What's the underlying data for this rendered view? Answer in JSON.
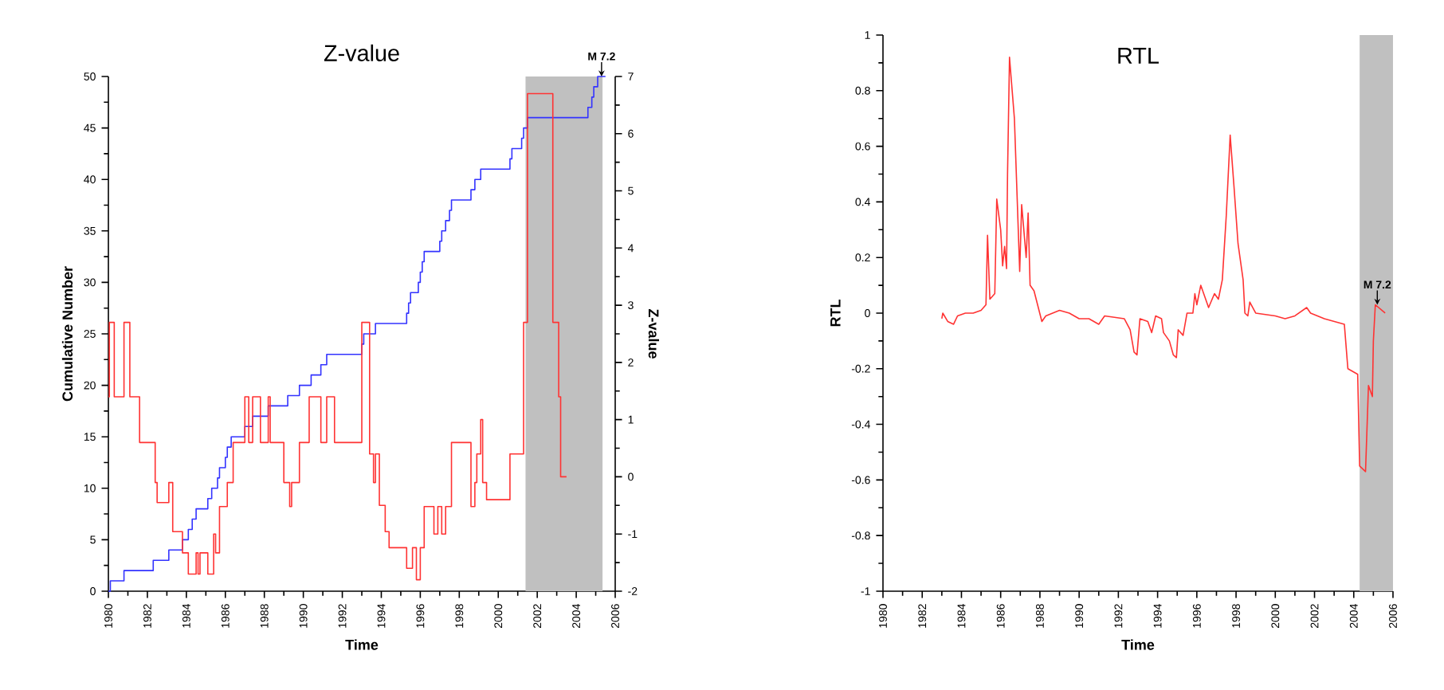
{
  "chart_data": [
    {
      "type": "step",
      "title": "Z-value",
      "xlabel": "Time",
      "ylabel": "Cumulative Number",
      "y2label": "Z-value",
      "xlim": [
        1980,
        2006
      ],
      "xticks": [
        1980,
        1982,
        1984,
        1986,
        1988,
        1990,
        1992,
        1994,
        1996,
        1998,
        2000,
        2002,
        2004,
        2006
      ],
      "ylim": [
        0,
        50
      ],
      "yticks": [
        0,
        5,
        10,
        15,
        20,
        25,
        30,
        35,
        40,
        45,
        50
      ],
      "y2lim": [
        -2,
        7
      ],
      "y2ticks": [
        -2,
        -1,
        0,
        1,
        2,
        3,
        4,
        5,
        6,
        7
      ],
      "bands": [
        {
          "axis": "x",
          "from": 2001.4,
          "to": 2005.35,
          "color": "#c0c0c0"
        }
      ],
      "annotations": [
        {
          "text": "M 7.2",
          "x": 2005.3,
          "y": 50
        }
      ],
      "series": [
        {
          "color": "#3333ff",
          "x": [
            1980.0,
            1980.1,
            1980.8,
            1982.3,
            1983.1,
            1983.8,
            1984.1,
            1984.3,
            1984.5,
            1985.1,
            1985.3,
            1985.6,
            1985.7,
            1986.0,
            1986.1,
            1986.3,
            1987.0,
            1987.4,
            1988.2,
            1989.2,
            1989.8,
            1990.4,
            1990.9,
            1991.2,
            1993.0,
            1993.1,
            1993.7,
            1995.3,
            1995.4,
            1995.5,
            1995.9,
            1996.0,
            1996.1,
            1996.2,
            1997.0,
            1997.1,
            1997.3,
            1997.5,
            1997.6,
            1998.6,
            1998.8,
            1999.1,
            2000.6,
            2000.7,
            2001.2,
            2001.3,
            2001.5,
            2004.6,
            2004.8,
            2004.9,
            2005.1,
            2005.5
          ],
          "values": [
            0,
            1,
            2,
            3,
            4,
            5,
            6,
            7,
            8,
            9,
            10,
            11,
            12,
            13,
            14,
            15,
            16,
            17,
            18,
            19,
            20,
            21,
            22,
            23,
            24,
            25,
            26,
            27,
            28,
            29,
            30,
            31,
            32,
            33,
            34,
            35,
            36,
            37,
            38,
            39,
            40,
            41,
            42,
            43,
            44,
            45,
            46,
            47,
            48,
            49,
            50,
            50
          ]
        },
        {
          "color": "#ff3333",
          "axis": "y2",
          "x": [
            1980.0,
            1980.05,
            1980.3,
            1980.8,
            1981.1,
            1981.6,
            1982.4,
            1982.5,
            1983.1,
            1983.3,
            1983.8,
            1984.1,
            1984.5,
            1984.6,
            1984.7,
            1985.1,
            1985.4,
            1985.5,
            1985.7,
            1986.1,
            1986.4,
            1987.0,
            1987.2,
            1987.4,
            1987.8,
            1988.2,
            1988.3,
            1989.0,
            1989.3,
            1989.4,
            1989.8,
            1990.3,
            1990.9,
            1991.2,
            1991.6,
            1993.0,
            1993.4,
            1993.6,
            1993.7,
            1993.9,
            1994.2,
            1994.4,
            1995.3,
            1995.6,
            1995.8,
            1996.0,
            1996.2,
            1996.7,
            1996.9,
            1997.1,
            1997.3,
            1997.6,
            1998.6,
            1998.8,
            1998.9,
            1999.1,
            1999.2,
            1999.4,
            2000.6,
            2001.3,
            2001.5,
            2002.8,
            2003.1,
            2003.2,
            2003.5
          ],
          "values": [
            1.4,
            2.7,
            1.4,
            2.7,
            1.4,
            0.6,
            -0.1,
            -0.45,
            -0.1,
            -0.96,
            -1.33,
            -1.7,
            -1.33,
            -1.7,
            -1.33,
            -1.7,
            -1.0,
            -1.33,
            -0.52,
            -0.1,
            0.6,
            1.4,
            0.6,
            1.4,
            0.6,
            1.4,
            0.6,
            -0.1,
            -0.52,
            -0.1,
            0.6,
            1.4,
            0.6,
            1.4,
            0.6,
            2.7,
            0.4,
            -0.1,
            0.4,
            -0.5,
            -0.96,
            -1.24,
            -1.6,
            -1.24,
            -1.8,
            -1.24,
            -0.52,
            -1.0,
            -0.52,
            -1.0,
            -0.52,
            0.6,
            -0.52,
            -0.1,
            0.4,
            1.0,
            -0.1,
            -0.4,
            0.4,
            2.7,
            6.7,
            2.7,
            1.4,
            0.0,
            0.0
          ]
        }
      ]
    },
    {
      "type": "line",
      "title": "RTL",
      "xlabel": "Time",
      "ylabel": "RTL",
      "xlim": [
        1980,
        2006
      ],
      "xticks": [
        1980,
        1982,
        1984,
        1986,
        1988,
        1990,
        1992,
        1994,
        1996,
        1998,
        2000,
        2002,
        2004,
        2006
      ],
      "ylim": [
        -1,
        1
      ],
      "yticks": [
        -1,
        -0.8,
        -0.6,
        -0.4,
        -0.2,
        0,
        0.2,
        0.4,
        0.6,
        0.8,
        1
      ],
      "bands": [
        {
          "axis": "x",
          "from": 2004.3,
          "to": 2006,
          "color": "#c0c0c0"
        }
      ],
      "annotations": [
        {
          "text": "M 7.2",
          "x": 2005.2,
          "y": 0.03
        }
      ],
      "series": [
        {
          "color": "#ff3333",
          "x": [
            1983.0,
            1983.05,
            1983.3,
            1983.6,
            1983.8,
            1984.2,
            1984.6,
            1985.0,
            1985.25,
            1985.33,
            1985.45,
            1985.7,
            1985.8,
            1986.0,
            1986.1,
            1986.2,
            1986.3,
            1986.35,
            1986.45,
            1986.7,
            1986.97,
            1987.07,
            1987.3,
            1987.4,
            1987.5,
            1987.7,
            1988.1,
            1988.3,
            1989.0,
            1989.5,
            1990.0,
            1990.5,
            1991.0,
            1991.3,
            1992.3,
            1992.6,
            1992.8,
            1992.95,
            1993.1,
            1993.5,
            1993.7,
            1993.9,
            1994.2,
            1994.3,
            1994.6,
            1994.8,
            1994.96,
            1995.05,
            1995.3,
            1995.5,
            1995.8,
            1995.9,
            1996.0,
            1996.2,
            1996.6,
            1996.9,
            1997.1,
            1997.3,
            1997.5,
            1997.7,
            1997.9,
            1998.1,
            1998.36,
            1998.45,
            1998.6,
            1998.7,
            1999.0,
            2000.0,
            2000.5,
            2001.0,
            2001.6,
            2001.8,
            2002.5,
            2003.52,
            2003.7,
            2004.2,
            2004.3,
            2004.6,
            2004.75,
            2004.95,
            2005.0,
            2005.1,
            2005.6
          ],
          "values": [
            -0.02,
            0.0,
            -0.03,
            -0.04,
            -0.01,
            0.0,
            0.0,
            0.01,
            0.03,
            0.28,
            0.05,
            0.07,
            0.41,
            0.3,
            0.17,
            0.24,
            0.16,
            0.5,
            0.92,
            0.7,
            0.15,
            0.39,
            0.2,
            0.36,
            0.1,
            0.08,
            -0.03,
            -0.01,
            0.01,
            0.0,
            -0.02,
            -0.02,
            -0.04,
            -0.01,
            -0.02,
            -0.06,
            -0.14,
            -0.15,
            -0.02,
            -0.03,
            -0.07,
            -0.01,
            -0.02,
            -0.07,
            -0.1,
            -0.15,
            -0.16,
            -0.06,
            -0.08,
            0.0,
            0.0,
            0.07,
            0.03,
            0.1,
            0.02,
            0.07,
            0.05,
            0.12,
            0.35,
            0.64,
            0.45,
            0.25,
            0.12,
            0.0,
            -0.01,
            0.04,
            0.0,
            -0.01,
            -0.02,
            -0.01,
            0.02,
            0.0,
            -0.02,
            -0.04,
            -0.2,
            -0.22,
            -0.55,
            -0.57,
            -0.26,
            -0.3,
            -0.1,
            0.03,
            0.0
          ]
        }
      ]
    }
  ]
}
